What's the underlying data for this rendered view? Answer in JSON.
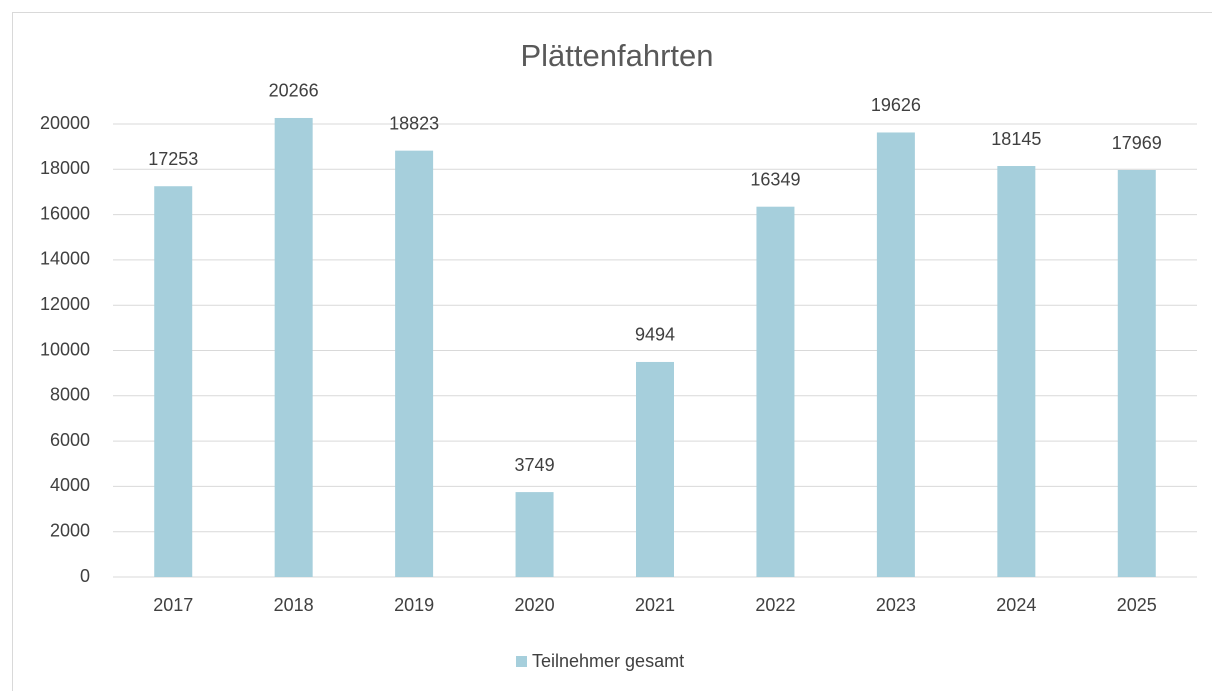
{
  "chart_data": {
    "type": "bar",
    "title": "Plättenfahrten",
    "categories": [
      "2017",
      "2018",
      "2019",
      "2020",
      "2021",
      "2022",
      "2023",
      "2024",
      "2025"
    ],
    "series": [
      {
        "name": "Teilnehmer gesamt",
        "color": "#a6cfdc",
        "values": [
          17253,
          20266,
          18823,
          3749,
          9494,
          16349,
          19626,
          18145,
          17969
        ]
      }
    ],
    "ylim": [
      0,
      20000
    ],
    "yticks": [
      0,
      2000,
      4000,
      6000,
      8000,
      10000,
      12000,
      14000,
      16000,
      18000,
      20000
    ],
    "grid": true,
    "legend": "bottom"
  }
}
